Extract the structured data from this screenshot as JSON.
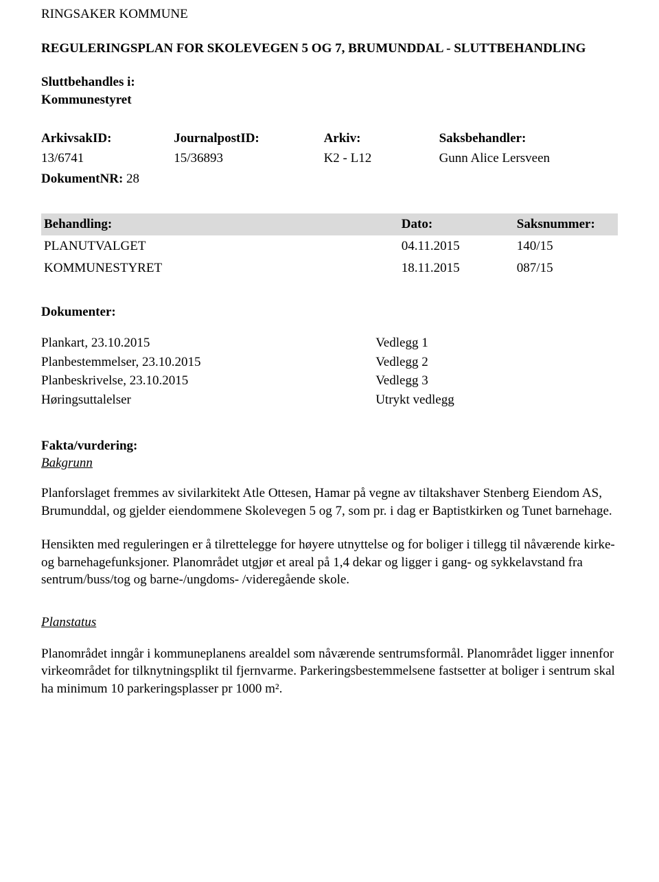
{
  "header": {
    "org": "RINGSAKER KOMMUNE",
    "title": "REGULERINGSPLAN FOR SKOLEVEGEN 5 OG 7, BRUMUNDDAL - SLUTTBEHANDLING",
    "sluttbehandles_label": "Sluttbehandles i:",
    "sluttbehandles_value": "Kommunestyret"
  },
  "meta": {
    "arkivsakid_label": "ArkivsakID:",
    "arkivsakid_value": "13/6741",
    "journalpostid_label": "JournalpostID:",
    "journalpostid_value": "15/36893",
    "arkiv_label": "Arkiv:",
    "arkiv_value": "K2 - L12",
    "saksbehandler_label": "Saksbehandler:",
    "saksbehandler_value": "Gunn Alice Lersveen",
    "dokumentnr_label": "DokumentNR:",
    "dokumentnr_value": "28"
  },
  "behandling": {
    "headers": {
      "col1": "Behandling:",
      "col2": "Dato:",
      "col3": "Saksnummer:"
    },
    "rows": [
      {
        "name": "PLANUTVALGET",
        "date": "04.11.2015",
        "saksnr": "140/15"
      },
      {
        "name": "KOMMUNESTYRET",
        "date": "18.11.2015",
        "saksnr": "087/15"
      }
    ]
  },
  "dokumenter": {
    "title": "Dokumenter:",
    "rows": [
      {
        "name": "Plankart, 23.10.2015",
        "vedlegg": "Vedlegg 1"
      },
      {
        "name": "Planbestemmelser, 23.10.2015",
        "vedlegg": "Vedlegg 2"
      },
      {
        "name": "Planbeskrivelse, 23.10.2015",
        "vedlegg": "Vedlegg 3"
      },
      {
        "name": "Høringsuttalelser",
        "vedlegg": "Utrykt vedlegg"
      }
    ]
  },
  "fakta": {
    "title": "Fakta/vurdering:",
    "subtitle": "Bakgrunn",
    "p1": "Planforslaget fremmes av sivilarkitekt Atle Ottesen, Hamar på vegne av tiltakshaver Stenberg Eiendom AS, Brumunddal, og gjelder eiendommene Skolevegen 5 og 7, som pr. i dag er Baptistkirken og Tunet barnehage.",
    "p2": "Hensikten med reguleringen er å tilrettelegge for høyere utnyttelse og for boliger i tillegg til nåværende kirke- og barnehagefunksjoner. Planområdet utgjør et areal på 1,4 dekar og ligger i gang- og sykkelavstand fra sentrum/buss/tog og barne-/ungdoms- /videregående skole."
  },
  "planstatus": {
    "title": "Planstatus",
    "p1": "Planområdet inngår i kommuneplanens arealdel som nåværende sentrumsformål. Planområdet ligger innenfor virkeområdet for tilknytningsplikt til fjernvarme. Parkeringsbestemmelsene fastsetter at boliger i sentrum skal ha minimum 10 parkeringsplasser pr 1000 m²."
  }
}
